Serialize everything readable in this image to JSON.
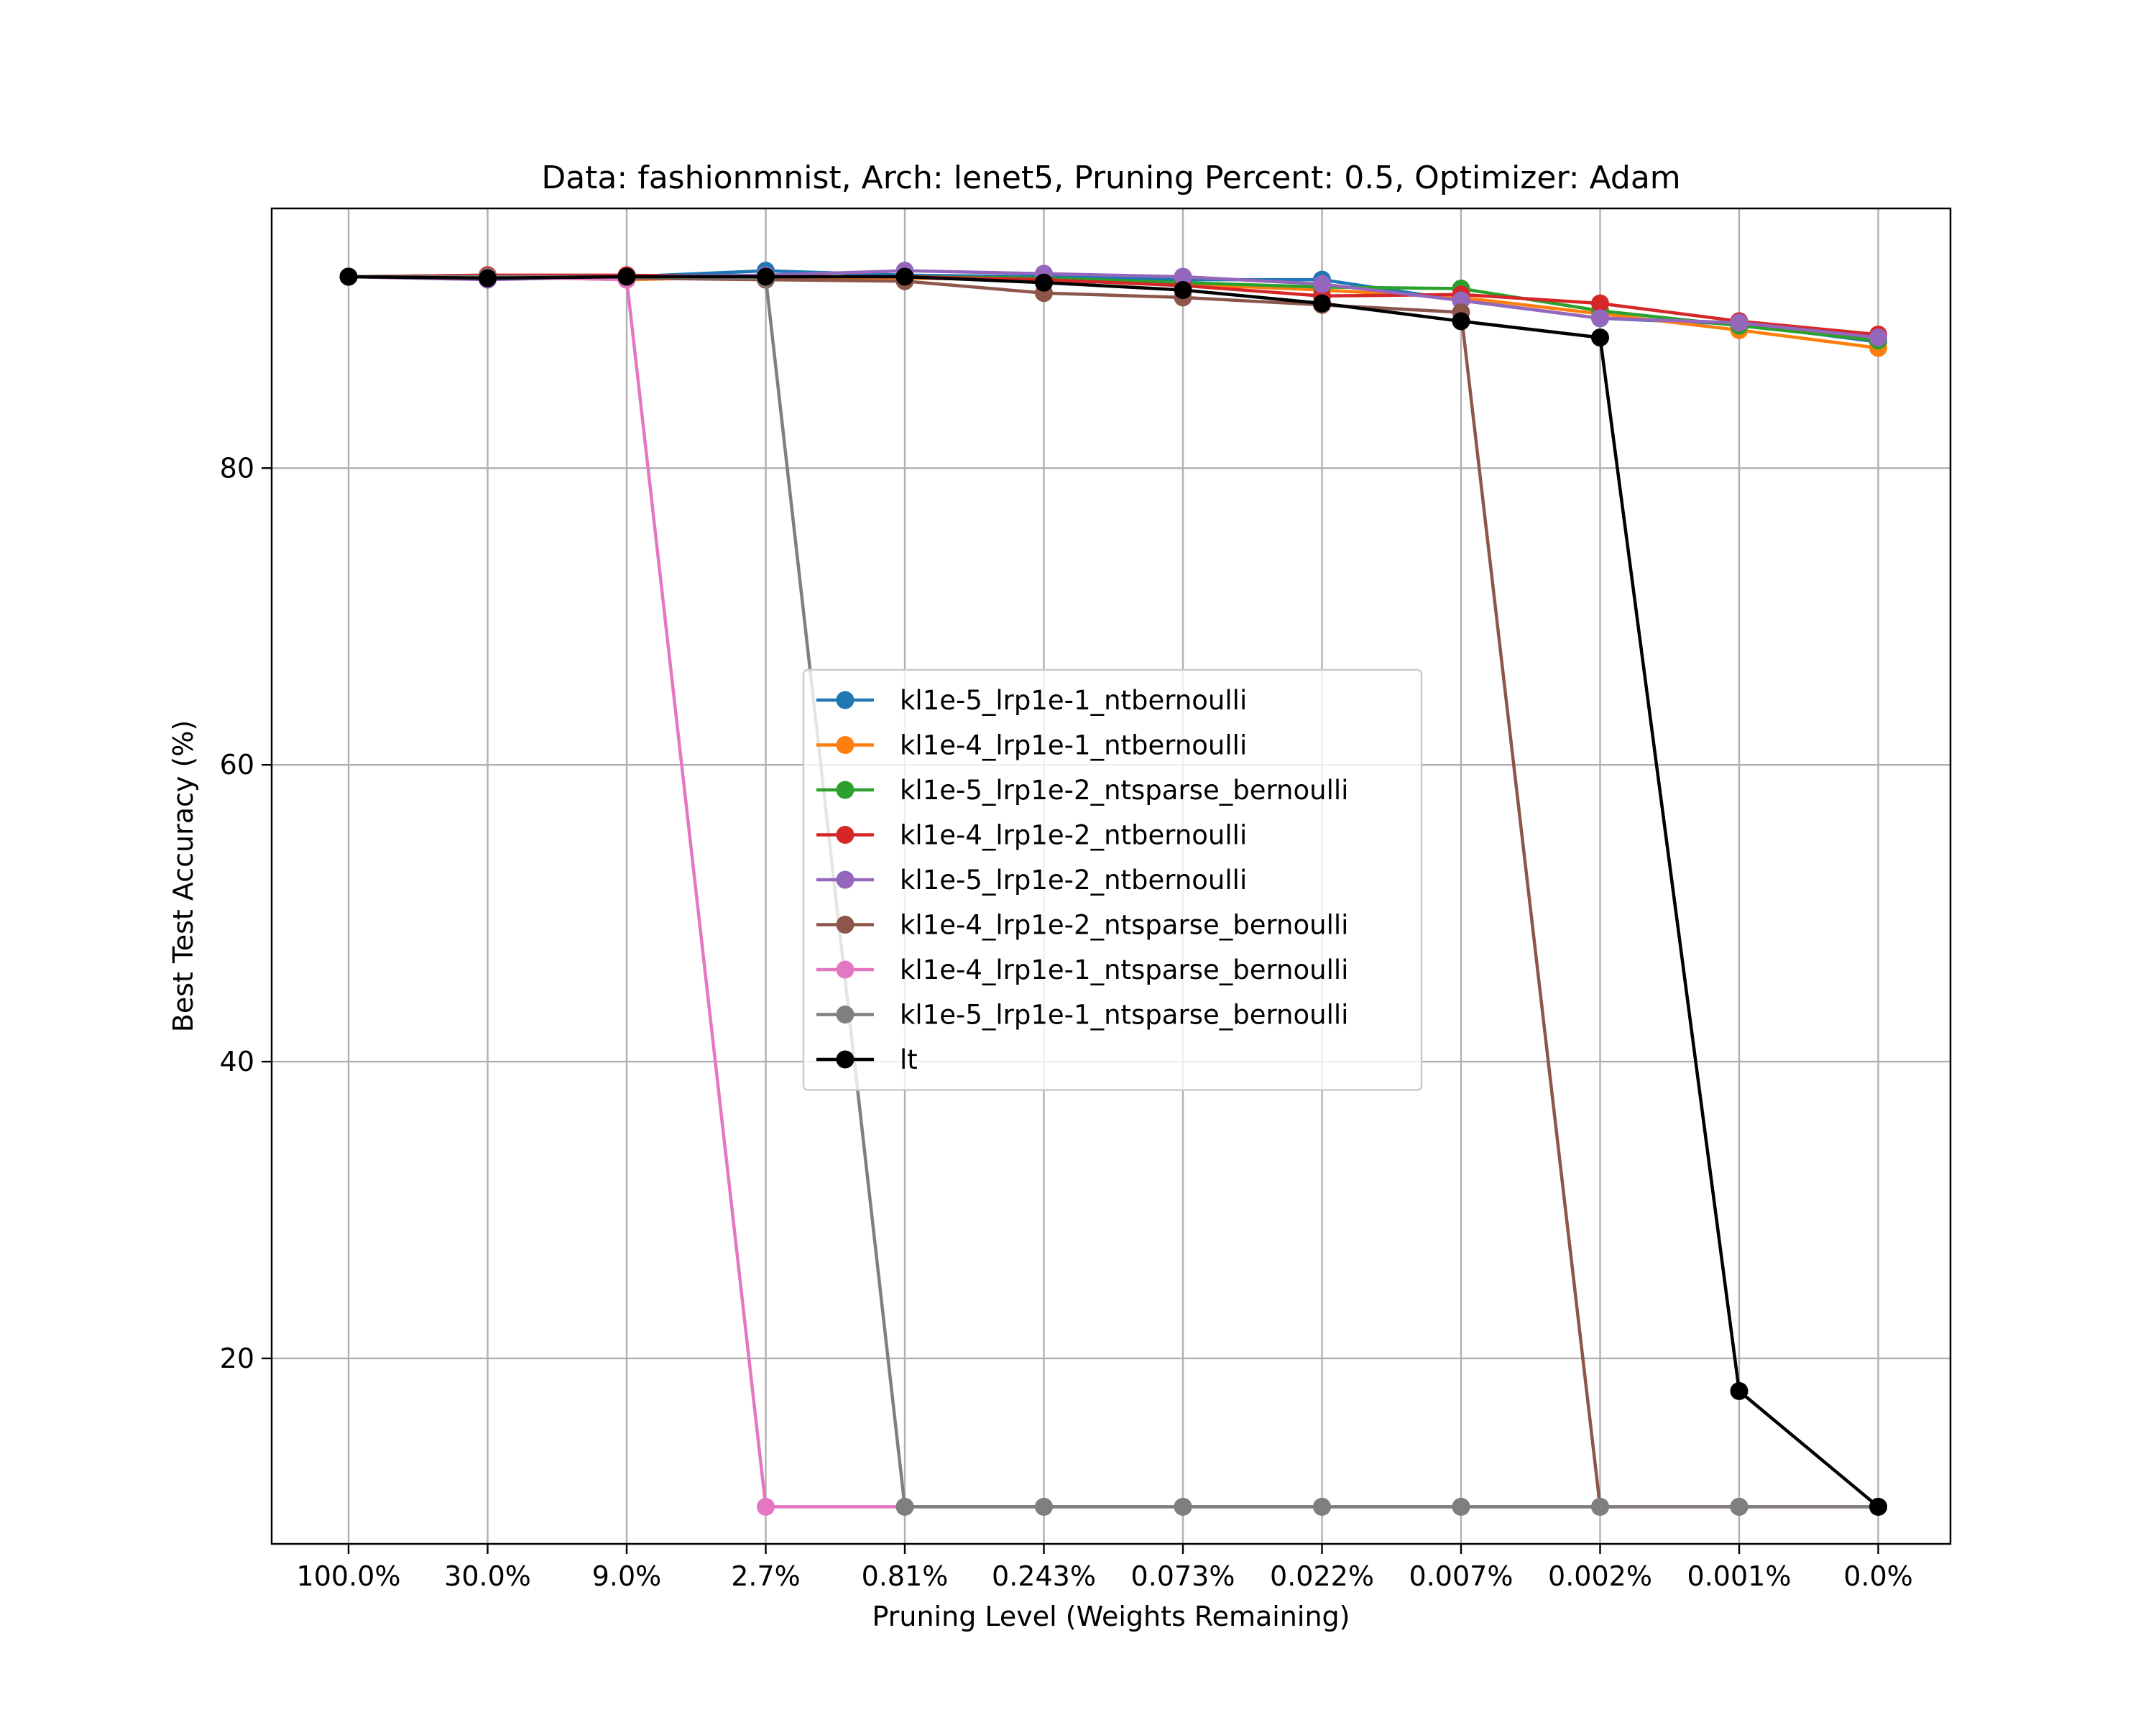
{
  "chart_data": {
    "type": "line",
    "title": "Data: fashionmnist, Arch: lenet5, Pruning Percent: 0.5, Optimizer: Adam",
    "xlabel": "Pruning Level (Weights Remaining)",
    "ylabel": "Best Test Accuracy (%)",
    "categories": [
      "100.0%",
      "30.0%",
      "9.0%",
      "2.7%",
      "0.81%",
      "0.243%",
      "0.073%",
      "0.022%",
      "0.007%",
      "0.002%",
      "0.001%",
      "0.0%"
    ],
    "yticks": [
      20,
      40,
      60,
      80
    ],
    "ylim": [
      7.5,
      97.5
    ],
    "grid": true,
    "legend_position": "center",
    "series": [
      {
        "name": "kl1e-5_lrp1e-1_ntbernoulli",
        "color": "#1f77b4",
        "values": [
          92.9,
          92.8,
          92.9,
          93.3,
          93.0,
          92.9,
          92.7,
          92.7,
          91.3,
          90.1,
          89.7,
          88.5
        ]
      },
      {
        "name": "kl1e-4_lrp1e-1_ntbernoulli",
        "color": "#ff7f0e",
        "values": [
          92.9,
          92.9,
          92.7,
          92.9,
          92.8,
          92.7,
          92.4,
          92.0,
          91.5,
          90.4,
          89.3,
          88.1
        ]
      },
      {
        "name": "kl1e-5_lrp1e-2_ntsparse_bernoulli",
        "color": "#2ca02c",
        "values": [
          92.9,
          93.0,
          92.9,
          92.9,
          92.9,
          92.8,
          92.5,
          92.2,
          92.1,
          90.6,
          89.6,
          88.6
        ]
      },
      {
        "name": "kl1e-4_lrp1e-2_ntbernoulli",
        "color": "#d62728",
        "values": [
          92.9,
          93.0,
          93.0,
          92.9,
          92.9,
          92.7,
          92.3,
          91.6,
          91.7,
          91.1,
          89.9,
          89.0
        ]
      },
      {
        "name": "kl1e-5_lrp1e-2_ntbernoulli",
        "color": "#9467bd",
        "values": [
          92.9,
          92.7,
          92.9,
          93.0,
          93.3,
          93.1,
          92.9,
          92.4,
          91.3,
          90.1,
          89.8,
          88.8
        ]
      },
      {
        "name": "kl1e-4_lrp1e-2_ntsparse_bernoulli",
        "color": "#8c564b",
        "values": [
          92.9,
          92.9,
          92.8,
          92.7,
          92.6,
          91.8,
          91.5,
          91.0,
          90.5,
          10.0,
          10.0,
          10.0
        ]
      },
      {
        "name": "kl1e-4_lrp1e-1_ntsparse_bernoulli",
        "color": "#e377c2",
        "values": [
          92.9,
          92.9,
          92.7,
          10.0,
          10.0,
          10.0,
          10.0,
          10.0,
          10.0,
          10.0,
          10.0,
          10.0
        ]
      },
      {
        "name": "kl1e-5_lrp1e-1_ntsparse_bernoulli",
        "color": "#7f7f7f",
        "values": [
          92.9,
          92.9,
          92.9,
          92.8,
          10.0,
          10.0,
          10.0,
          10.0,
          10.0,
          10.0,
          10.0,
          10.0
        ]
      },
      {
        "name": "lt",
        "color": "#000000",
        "values": [
          92.9,
          92.8,
          92.9,
          92.9,
          92.9,
          92.5,
          92.0,
          91.1,
          89.9,
          88.8,
          17.8,
          10.0
        ]
      }
    ]
  }
}
